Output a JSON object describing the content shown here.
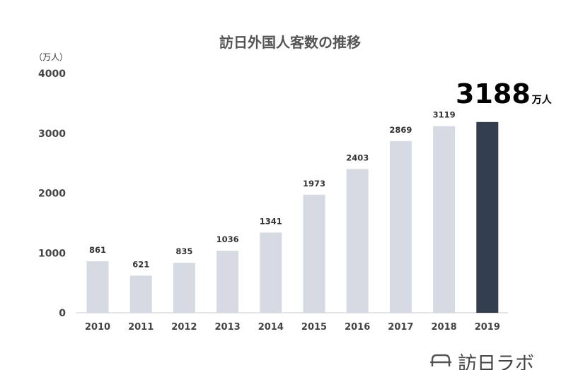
{
  "chart_data": {
    "type": "bar",
    "title": "訪日外国人客数の推移",
    "unit_label": "（万人）",
    "categories": [
      "2010",
      "2011",
      "2012",
      "2013",
      "2014",
      "2015",
      "2016",
      "2017",
      "2018",
      "2019"
    ],
    "values": [
      861,
      621,
      835,
      1036,
      1341,
      1973,
      2403,
      2869,
      3119,
      3188
    ],
    "data_labels": [
      "861",
      "621",
      "835",
      "1036",
      "1341",
      "1973",
      "2403",
      "2869",
      "3119",
      ""
    ],
    "yticks": [
      "0",
      "1000",
      "2000",
      "3000",
      "4000"
    ],
    "ylim": [
      0,
      4000
    ],
    "grid": false,
    "legend": "none",
    "bar_color": "#d5dae3",
    "highlight_color": "#323d4e",
    "highlight_index": 9,
    "callout": {
      "value": "3188",
      "unit": "万人"
    }
  },
  "brand": {
    "text": "訪日ラボ",
    "icon": "hat-logo-icon"
  }
}
